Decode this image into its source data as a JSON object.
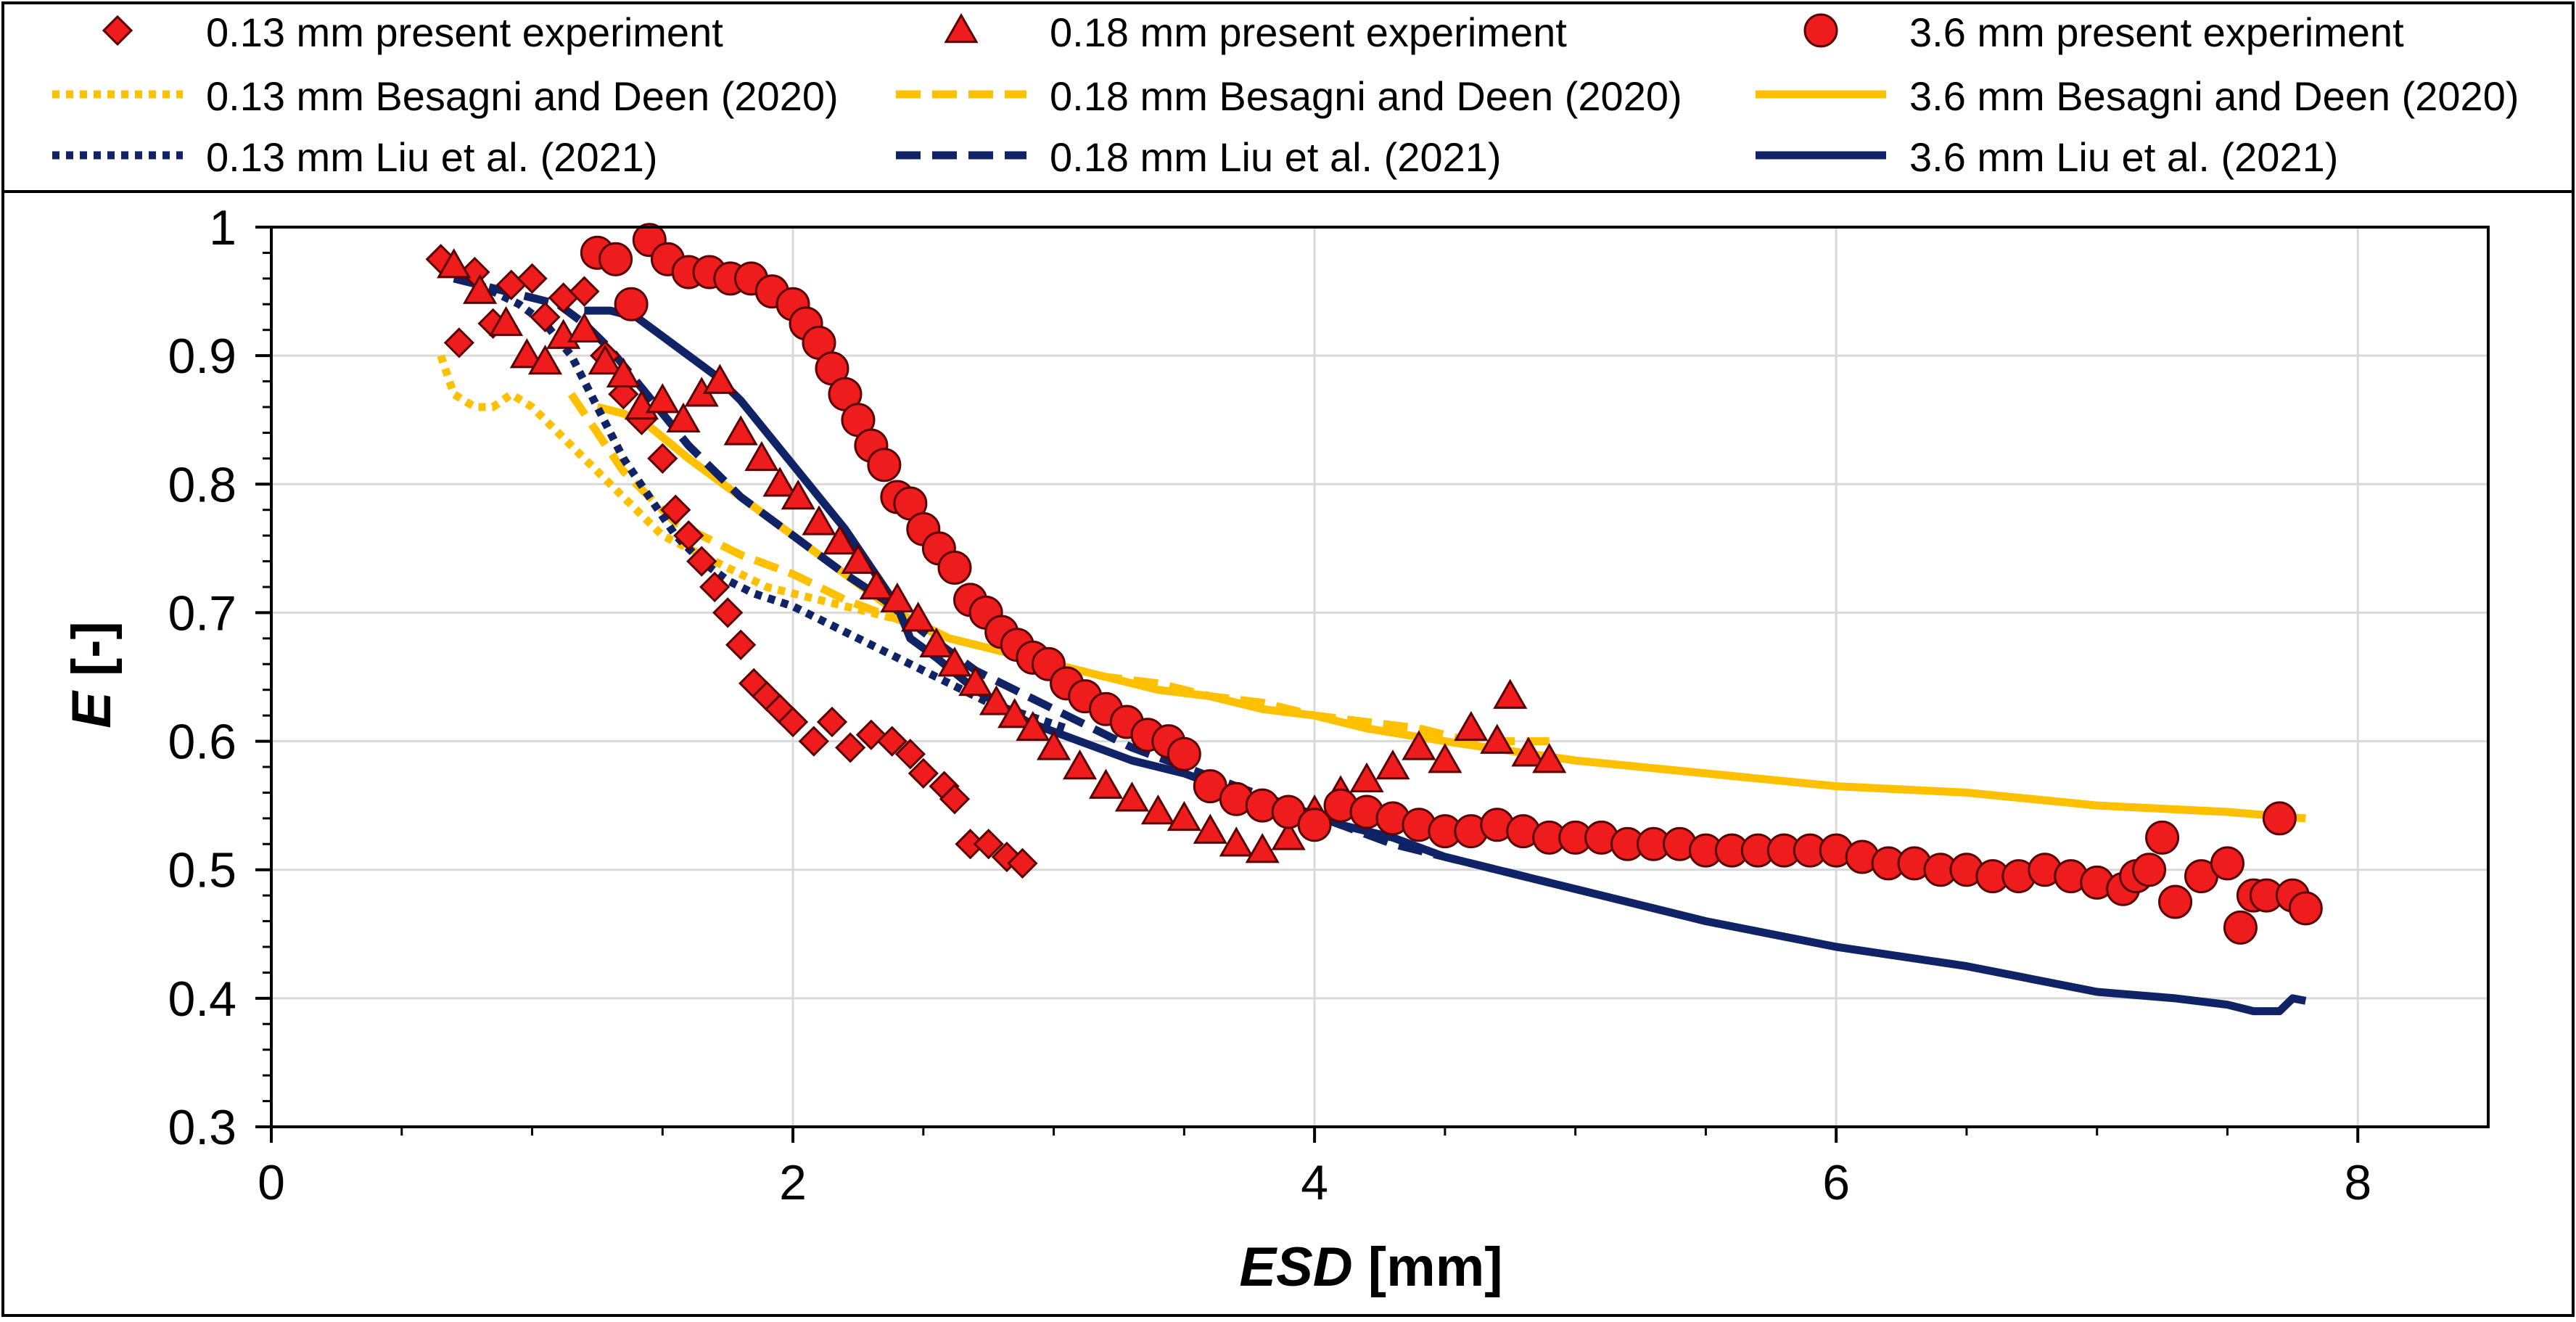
{
  "chart_data": {
    "type": "scatter",
    "title": "",
    "xlabel_italic": "ESD",
    "xlabel_unit": " [mm]",
    "ylabel_italic": "E",
    "ylabel_unit": " [-]",
    "xlim": [
      0,
      8.5
    ],
    "ylim": [
      0.3,
      1.0
    ],
    "xticks": [
      0,
      2,
      4,
      6,
      8
    ],
    "yticks": [
      0.3,
      0.4,
      0.5,
      0.6,
      0.7,
      0.8,
      0.9,
      1.0
    ],
    "xtick_labels": [
      "0",
      "2",
      "4",
      "6",
      "8"
    ],
    "ytick_labels": [
      "0.3",
      "0.4",
      "0.5",
      "0.6",
      "0.7",
      "0.8",
      "0.9",
      "1"
    ],
    "grid": true,
    "legend_position": "top",
    "colors": {
      "red": "#ee1c1c",
      "marker_edge": "#5a0000",
      "yellow": "#ffc000",
      "navy": "#0f2366"
    },
    "series": [
      {
        "name": "0.13 mm present experiment",
        "kind": "marker",
        "marker": "diamond",
        "x": [
          0.65,
          0.72,
          0.78,
          0.85,
          0.92,
          1.0,
          1.05,
          1.12,
          1.2,
          1.28,
          1.35,
          1.42,
          1.5,
          1.55,
          1.6,
          1.65,
          1.7,
          1.75,
          1.8,
          1.85,
          1.9,
          1.95,
          2.0,
          2.08,
          2.15,
          2.22,
          2.3,
          2.38,
          2.45,
          2.5,
          2.58,
          2.62,
          2.68,
          2.75,
          2.82,
          2.88
        ],
        "y": [
          0.975,
          0.91,
          0.965,
          0.925,
          0.955,
          0.96,
          0.93,
          0.945,
          0.95,
          0.9,
          0.87,
          0.85,
          0.82,
          0.78,
          0.76,
          0.74,
          0.72,
          0.7,
          0.675,
          0.645,
          0.635,
          0.625,
          0.615,
          0.6,
          0.615,
          0.595,
          0.605,
          0.6,
          0.59,
          0.575,
          0.565,
          0.555,
          0.52,
          0.52,
          0.51,
          0.505
        ]
      },
      {
        "name": "0.18 mm present experiment",
        "kind": "marker",
        "marker": "triangle",
        "x": [
          0.7,
          0.8,
          0.9,
          0.98,
          1.05,
          1.12,
          1.2,
          1.28,
          1.35,
          1.42,
          1.5,
          1.58,
          1.65,
          1.72,
          1.8,
          1.88,
          1.95,
          2.02,
          2.1,
          2.18,
          2.25,
          2.32,
          2.4,
          2.48,
          2.55,
          2.62,
          2.7,
          2.78,
          2.85,
          2.92,
          3.0,
          3.1,
          3.2,
          3.3,
          3.4,
          3.5,
          3.6,
          3.7,
          3.8,
          3.9,
          4.0,
          4.1,
          4.2,
          4.3,
          4.4,
          4.5,
          4.6,
          4.7,
          4.75,
          4.82,
          4.9
        ],
        "y": [
          0.97,
          0.95,
          0.925,
          0.9,
          0.895,
          0.915,
          0.92,
          0.895,
          0.885,
          0.86,
          0.865,
          0.85,
          0.87,
          0.88,
          0.84,
          0.82,
          0.8,
          0.79,
          0.77,
          0.755,
          0.74,
          0.72,
          0.71,
          0.695,
          0.675,
          0.66,
          0.645,
          0.63,
          0.62,
          0.61,
          0.595,
          0.58,
          0.565,
          0.555,
          0.545,
          0.54,
          0.53,
          0.52,
          0.515,
          0.525,
          0.545,
          0.56,
          0.57,
          0.58,
          0.595,
          0.585,
          0.61,
          0.6,
          0.635,
          0.59,
          0.585
        ]
      },
      {
        "name": "3.6 mm present experiment",
        "kind": "marker",
        "marker": "circle",
        "x": [
          1.25,
          1.32,
          1.38,
          1.45,
          1.52,
          1.6,
          1.68,
          1.76,
          1.84,
          1.92,
          2.0,
          2.05,
          2.1,
          2.15,
          2.2,
          2.25,
          2.3,
          2.35,
          2.4,
          2.45,
          2.5,
          2.56,
          2.62,
          2.68,
          2.74,
          2.8,
          2.86,
          2.92,
          2.98,
          3.05,
          3.12,
          3.2,
          3.28,
          3.36,
          3.44,
          3.5,
          3.6,
          3.7,
          3.8,
          3.9,
          4.0,
          4.1,
          4.2,
          4.3,
          4.4,
          4.5,
          4.6,
          4.7,
          4.8,
          4.9,
          5.0,
          5.1,
          5.2,
          5.3,
          5.4,
          5.5,
          5.6,
          5.7,
          5.8,
          5.9,
          6.0,
          6.1,
          6.2,
          6.3,
          6.4,
          6.5,
          6.6,
          6.7,
          6.8,
          6.9,
          7.0,
          7.1,
          7.15,
          7.2,
          7.25,
          7.3,
          7.4,
          7.5,
          7.55,
          7.6,
          7.65,
          7.7,
          7.75,
          7.8
        ],
        "y": [
          0.98,
          0.975,
          0.94,
          0.99,
          0.975,
          0.965,
          0.965,
          0.96,
          0.96,
          0.95,
          0.94,
          0.925,
          0.91,
          0.89,
          0.87,
          0.85,
          0.83,
          0.815,
          0.79,
          0.785,
          0.765,
          0.75,
          0.735,
          0.71,
          0.7,
          0.685,
          0.675,
          0.665,
          0.66,
          0.645,
          0.635,
          0.625,
          0.615,
          0.605,
          0.6,
          0.59,
          0.565,
          0.555,
          0.55,
          0.545,
          0.535,
          0.55,
          0.545,
          0.54,
          0.535,
          0.53,
          0.53,
          0.535,
          0.53,
          0.525,
          0.525,
          0.525,
          0.52,
          0.52,
          0.52,
          0.515,
          0.515,
          0.515,
          0.515,
          0.515,
          0.515,
          0.51,
          0.505,
          0.505,
          0.5,
          0.5,
          0.495,
          0.495,
          0.5,
          0.495,
          0.49,
          0.485,
          0.495,
          0.5,
          0.525,
          0.475,
          0.495,
          0.505,
          0.455,
          0.48,
          0.48,
          0.54,
          0.48,
          0.47
        ]
      },
      {
        "name": "0.13 mm Besagni and Deen (2020)",
        "kind": "line",
        "dash": "dotted",
        "color": "yellow",
        "x": [
          0.65,
          0.7,
          0.78,
          0.85,
          0.92,
          1.0,
          1.1,
          1.2,
          1.3,
          1.4,
          1.5,
          1.6,
          1.7,
          1.8,
          1.9,
          2.0,
          2.1,
          2.2,
          2.3,
          2.4,
          2.5
        ],
        "y": [
          0.9,
          0.87,
          0.86,
          0.86,
          0.87,
          0.86,
          0.84,
          0.82,
          0.8,
          0.78,
          0.76,
          0.75,
          0.74,
          0.73,
          0.72,
          0.715,
          0.71,
          0.705,
          0.7,
          0.695,
          0.69
        ]
      },
      {
        "name": "0.18 mm Besagni and Deen (2020)",
        "kind": "line",
        "dash": "dashed",
        "color": "yellow",
        "x": [
          1.15,
          1.25,
          1.35,
          1.45,
          1.55,
          1.65,
          1.8,
          2.0,
          2.2,
          2.4,
          2.6,
          2.8,
          3.0,
          3.2,
          3.4,
          3.6,
          3.8,
          4.0,
          4.2,
          4.4,
          4.6,
          4.8,
          4.9
        ],
        "y": [
          0.87,
          0.84,
          0.81,
          0.79,
          0.77,
          0.76,
          0.745,
          0.73,
          0.71,
          0.695,
          0.68,
          0.67,
          0.66,
          0.65,
          0.645,
          0.635,
          0.63,
          0.62,
          0.615,
          0.61,
          0.6,
          0.6,
          0.6
        ]
      },
      {
        "name": "3.6 mm Besagni and Deen (2020)",
        "kind": "line",
        "dash": "solid",
        "color": "yellow",
        "x": [
          1.25,
          1.35,
          1.45,
          1.6,
          1.8,
          2.0,
          2.2,
          2.4,
          2.6,
          2.8,
          3.0,
          3.2,
          3.4,
          3.6,
          3.8,
          4.0,
          4.2,
          4.5,
          5.0,
          5.5,
          6.0,
          6.5,
          7.0,
          7.5,
          7.8
        ],
        "y": [
          0.86,
          0.855,
          0.845,
          0.82,
          0.79,
          0.76,
          0.73,
          0.7,
          0.68,
          0.67,
          0.66,
          0.65,
          0.64,
          0.635,
          0.625,
          0.62,
          0.61,
          0.6,
          0.585,
          0.575,
          0.565,
          0.56,
          0.55,
          0.545,
          0.54
        ]
      },
      {
        "name": "0.13 mm Liu et al. (2021)",
        "kind": "line",
        "dash": "dotted",
        "color": "navy",
        "x": [
          0.65,
          0.75,
          0.85,
          0.95,
          1.05,
          1.15,
          1.25,
          1.35,
          1.45,
          1.55,
          1.65,
          1.75,
          1.85,
          2.0,
          2.15,
          2.3,
          2.45,
          2.6,
          2.75,
          2.9,
          3.05
        ],
        "y": [
          0.97,
          0.96,
          0.95,
          0.94,
          0.925,
          0.9,
          0.86,
          0.82,
          0.79,
          0.76,
          0.74,
          0.725,
          0.715,
          0.705,
          0.69,
          0.675,
          0.66,
          0.645,
          0.63,
          0.62,
          0.61
        ]
      },
      {
        "name": "0.18 mm Liu et al. (2021)",
        "kind": "line",
        "dash": "dashed",
        "color": "navy",
        "x": [
          0.7,
          0.8,
          0.9,
          1.0,
          1.1,
          1.2,
          1.3,
          1.4,
          1.5,
          1.6,
          1.7,
          1.8,
          1.9,
          2.0,
          2.1,
          2.2,
          2.35,
          2.5,
          2.7,
          2.9,
          3.1,
          3.3,
          3.5,
          3.7,
          3.9,
          4.1,
          4.3,
          4.5,
          4.7,
          4.9
        ],
        "y": [
          0.96,
          0.955,
          0.95,
          0.945,
          0.94,
          0.925,
          0.905,
          0.88,
          0.855,
          0.83,
          0.81,
          0.79,
          0.775,
          0.76,
          0.745,
          0.73,
          0.71,
          0.685,
          0.655,
          0.635,
          0.615,
          0.595,
          0.58,
          0.565,
          0.55,
          0.535,
          0.52,
          0.51,
          0.5,
          0.49
        ]
      },
      {
        "name": "3.6 mm Liu et al. (2021)",
        "kind": "line",
        "dash": "solid",
        "color": "navy",
        "x": [
          1.2,
          1.3,
          1.4,
          1.5,
          1.6,
          1.7,
          1.8,
          1.9,
          2.0,
          2.1,
          2.2,
          2.3,
          2.4,
          2.45,
          2.55,
          2.7,
          2.9,
          3.1,
          3.3,
          3.5,
          3.7,
          3.9,
          4.1,
          4.3,
          4.5,
          4.8,
          5.1,
          5.5,
          6.0,
          6.5,
          7.0,
          7.3,
          7.5,
          7.6,
          7.65,
          7.7,
          7.75,
          7.8
        ],
        "y": [
          0.935,
          0.935,
          0.93,
          0.915,
          0.9,
          0.885,
          0.865,
          0.84,
          0.815,
          0.79,
          0.765,
          0.735,
          0.705,
          0.68,
          0.665,
          0.64,
          0.615,
          0.6,
          0.585,
          0.575,
          0.56,
          0.55,
          0.535,
          0.525,
          0.51,
          0.495,
          0.48,
          0.46,
          0.44,
          0.425,
          0.405,
          0.4,
          0.395,
          0.39,
          0.39,
          0.39,
          0.4,
          0.398
        ]
      }
    ]
  }
}
